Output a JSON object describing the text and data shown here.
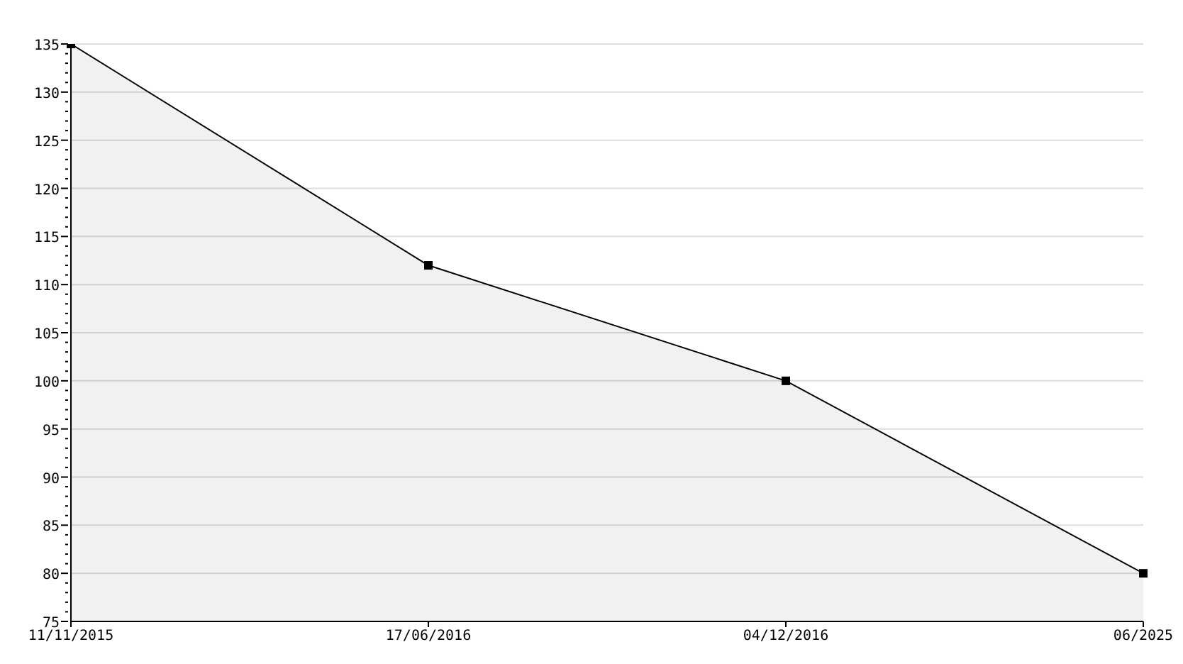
{
  "chart_data": {
    "type": "area",
    "categories": [
      "11/11/2015",
      "17/06/2016",
      "04/12/2016",
      "06/2025"
    ],
    "series": [
      {
        "color": "#000000",
        "values": [
          135,
          112,
          100,
          80
        ]
      }
    ],
    "marker": "square",
    "grid": "y",
    "line_style": "solid",
    "ylim": [
      75,
      135
    ],
    "yticks": [
      75,
      {
        "value": 76,
        "label": null
      },
      {
        "value": 77,
        "label": null
      },
      {
        "value": 78,
        "label": null
      },
      {
        "value": 79,
        "label": null
      },
      80,
      {
        "value": 81,
        "label": null
      },
      {
        "value": 82,
        "label": null
      },
      {
        "value": 83,
        "label": null
      },
      {
        "value": 84,
        "label": null
      },
      85,
      {
        "value": 86,
        "label": null
      },
      {
        "value": 87,
        "label": null
      },
      {
        "value": 88,
        "label": null
      },
      {
        "value": 89,
        "label": null
      },
      90,
      {
        "value": 91,
        "label": null
      },
      {
        "value": 92,
        "label": null
      },
      {
        "value": 93,
        "label": null
      },
      {
        "value": 94,
        "label": null
      },
      95,
      {
        "value": 96,
        "label": null
      },
      {
        "value": 97,
        "label": null
      },
      {
        "value": 98,
        "label": null
      },
      {
        "value": 99,
        "label": null
      },
      100,
      {
        "value": 101,
        "label": null
      },
      {
        "value": 102,
        "label": null
      },
      {
        "value": 103,
        "label": null
      },
      {
        "value": 104,
        "label": null
      },
      105,
      {
        "value": 106,
        "label": null
      },
      {
        "value": 107,
        "label": null
      },
      {
        "value": 108,
        "label": null
      },
      {
        "value": 109,
        "label": null
      },
      110,
      {
        "value": 111,
        "label": null
      },
      {
        "value": 112,
        "label": null
      },
      {
        "value": 113,
        "label": null
      },
      {
        "value": 114,
        "label": null
      },
      115,
      {
        "value": 116,
        "label": null
      },
      {
        "value": 117,
        "label": null
      },
      {
        "value": 118,
        "label": null
      },
      {
        "value": 119,
        "label": null
      },
      120,
      {
        "value": 121,
        "label": null
      },
      {
        "value": 122,
        "label": null
      },
      {
        "value": 123,
        "label": null
      },
      {
        "value": 124,
        "label": null
      },
      125,
      {
        "value": 126,
        "label": null
      },
      {
        "value": 127,
        "label": null
      },
      {
        "value": 128,
        "label": null
      },
      {
        "value": 129,
        "label": null
      },
      130,
      {
        "value": 131,
        "label": null
      },
      {
        "value": 132,
        "label": null
      },
      {
        "value": 133,
        "label": null
      },
      {
        "value": 134,
        "label": null
      },
      135
    ]
  }
}
